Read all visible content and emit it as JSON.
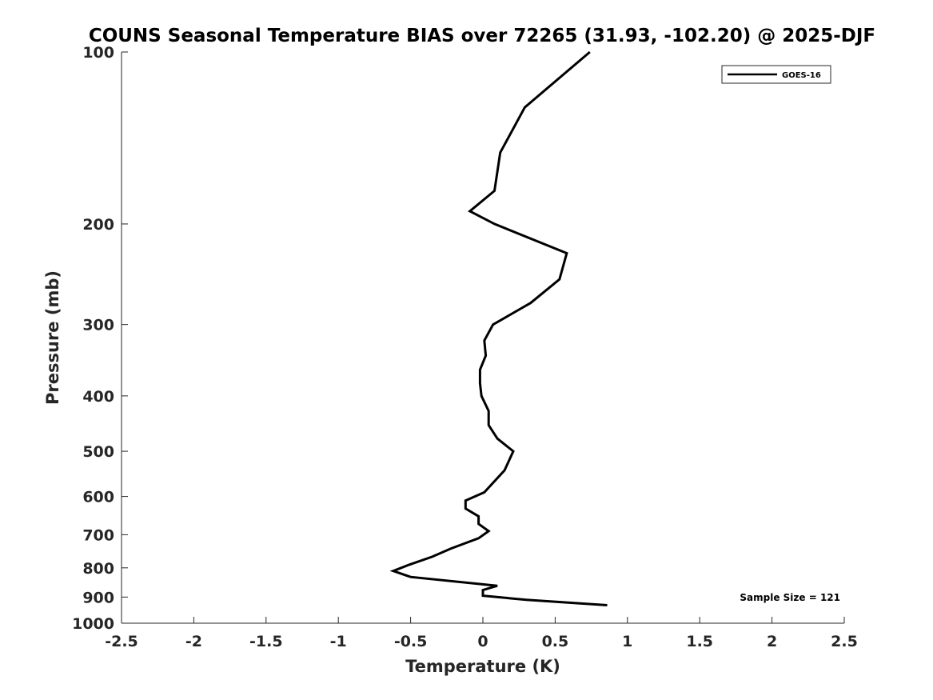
{
  "chart_data": {
    "type": "line",
    "title": "COUNS Seasonal Temperature BIAS over 72265 (31.93, -102.20) @ 2025-DJF",
    "xlabel": "Temperature (K)",
    "ylabel": "Pressure (mb)",
    "xlim": [
      -2.5,
      2.5
    ],
    "ylim": [
      100,
      1000
    ],
    "y_scale": "log",
    "y_reversed": true,
    "grid": false,
    "legend_position": "top-right",
    "x_ticks": [
      -2.5,
      -2,
      -1.5,
      -1,
      -0.5,
      0,
      0.5,
      1,
      1.5,
      2,
      2.5
    ],
    "x_tick_labels": [
      "-2.5",
      "-2",
      "-1.5",
      "-1",
      "-0.5",
      "0",
      "0.5",
      "1",
      "1.5",
      "2",
      "2.5"
    ],
    "y_ticks": [
      100,
      200,
      300,
      400,
      500,
      600,
      700,
      800,
      900,
      1000
    ],
    "y_tick_labels": [
      "100",
      "200",
      "300",
      "400",
      "500",
      "600",
      "700",
      "800",
      "900",
      "1000"
    ],
    "series": [
      {
        "name": "GOES-16",
        "color": "#000000",
        "points": [
          [
            0.74,
            100
          ],
          [
            0.29,
            125
          ],
          [
            0.12,
            150
          ],
          [
            0.08,
            175
          ],
          [
            -0.09,
            190
          ],
          [
            0.08,
            200
          ],
          [
            0.58,
            225
          ],
          [
            0.53,
            250
          ],
          [
            0.33,
            275
          ],
          [
            0.07,
            300
          ],
          [
            0.01,
            320
          ],
          [
            0.02,
            340
          ],
          [
            -0.02,
            360
          ],
          [
            -0.02,
            380
          ],
          [
            -0.01,
            400
          ],
          [
            0.04,
            425
          ],
          [
            0.04,
            450
          ],
          [
            0.1,
            475
          ],
          [
            0.21,
            500
          ],
          [
            0.15,
            540
          ],
          [
            0.01,
            590
          ],
          [
            -0.12,
            610
          ],
          [
            -0.12,
            630
          ],
          [
            -0.03,
            650
          ],
          [
            -0.03,
            670
          ],
          [
            0.04,
            690
          ],
          [
            -0.03,
            710
          ],
          [
            -0.22,
            740
          ],
          [
            -0.35,
            765
          ],
          [
            -0.51,
            790
          ],
          [
            -0.62,
            810
          ],
          [
            -0.5,
            830
          ],
          [
            0.1,
            860
          ],
          [
            0.0,
            875
          ],
          [
            0.0,
            895
          ],
          [
            0.3,
            910
          ],
          [
            0.86,
            930
          ]
        ]
      }
    ],
    "annotations": [
      {
        "text": "Sample Size = 121",
        "position": "bottom-right"
      }
    ]
  }
}
